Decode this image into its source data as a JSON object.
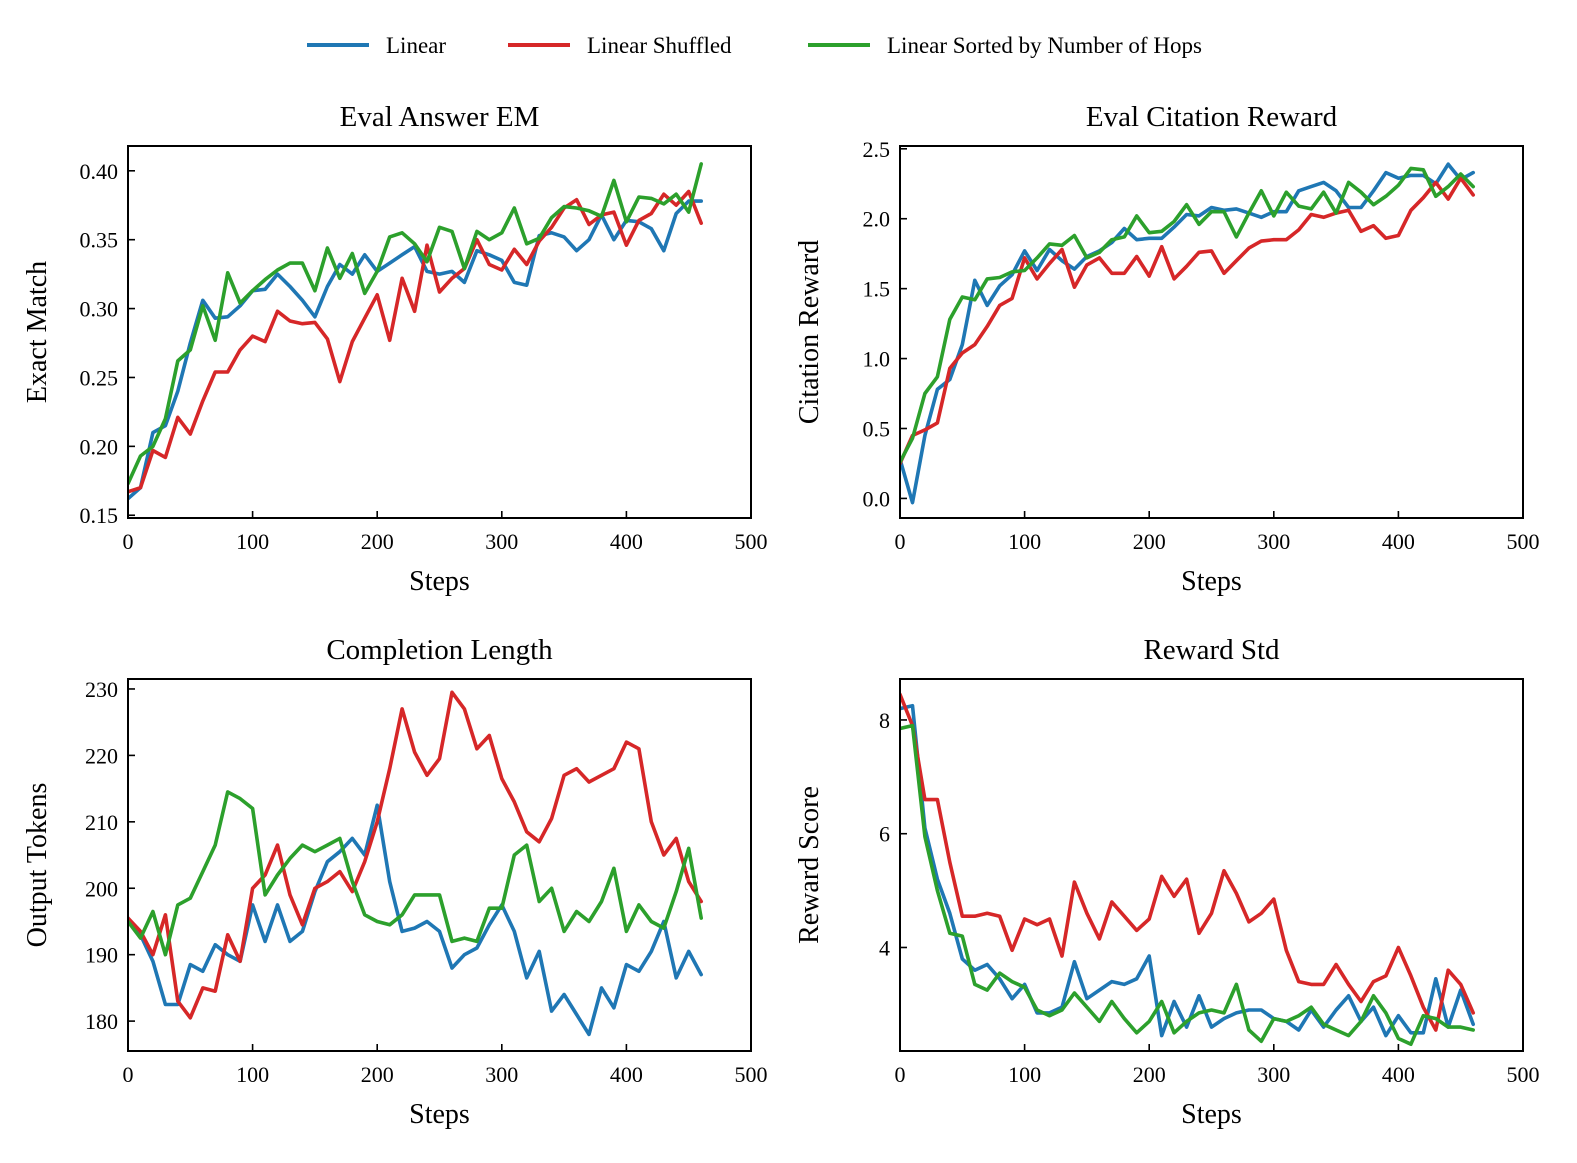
{
  "legend": {
    "items": [
      {
        "label": "Linear",
        "color": "#1f77b4"
      },
      {
        "label": "Linear Shuffled",
        "color": "#d62728"
      },
      {
        "label": "Linear Sorted by Number of Hops",
        "color": "#2ca02c"
      }
    ]
  },
  "chart_data": [
    {
      "type": "line",
      "title": "Eval Answer EM",
      "xlabel": "Steps",
      "ylabel": "Exact Match",
      "xlim": [
        0,
        500
      ],
      "ylim": [
        0.148,
        0.418
      ],
      "xticks": [
        0,
        100,
        200,
        300,
        400,
        500
      ],
      "yticks": [
        0.15,
        0.2,
        0.25,
        0.3,
        0.35,
        0.4
      ],
      "ytick_labels": [
        "0.15",
        "0.20",
        "0.25",
        "0.30",
        "0.35",
        "0.40"
      ],
      "x": [
        0,
        10,
        20,
        30,
        40,
        50,
        60,
        70,
        80,
        90,
        100,
        110,
        120,
        130,
        140,
        150,
        160,
        170,
        180,
        190,
        200,
        210,
        220,
        230,
        240,
        250,
        260,
        270,
        280,
        290,
        300,
        310,
        320,
        330,
        340,
        350,
        360,
        370,
        380,
        390,
        400,
        410,
        420,
        430,
        440,
        450,
        460
      ],
      "series": [
        {
          "name": "Linear",
          "color": "#1f77b4",
          "values": [
            0.162,
            0.17,
            0.21,
            0.215,
            0.24,
            0.275,
            0.306,
            0.293,
            0.294,
            0.302,
            0.313,
            0.314,
            0.325,
            0.316,
            0.306,
            0.294,
            0.316,
            0.332,
            0.325,
            0.339,
            0.327,
            0.333,
            0.339,
            0.345,
            0.327,
            0.325,
            0.327,
            0.319,
            0.342,
            0.339,
            0.335,
            0.319,
            0.317,
            0.353,
            0.355,
            0.352,
            0.342,
            0.35,
            0.368,
            0.35,
            0.364,
            0.363,
            0.358,
            0.342,
            0.369,
            0.378,
            0.378
          ]
        },
        {
          "name": "Linear Shuffled",
          "color": "#d62728",
          "values": [
            0.167,
            0.17,
            0.197,
            0.192,
            0.221,
            0.209,
            0.233,
            0.254,
            0.254,
            0.27,
            0.28,
            0.276,
            0.298,
            0.291,
            0.289,
            0.29,
            0.278,
            0.247,
            0.276,
            0.293,
            0.31,
            0.277,
            0.322,
            0.298,
            0.346,
            0.312,
            0.322,
            0.329,
            0.35,
            0.332,
            0.328,
            0.343,
            0.332,
            0.349,
            0.359,
            0.373,
            0.379,
            0.361,
            0.368,
            0.37,
            0.346,
            0.364,
            0.369,
            0.383,
            0.375,
            0.385,
            0.362
          ]
        },
        {
          "name": "Linear Sorted by Number of Hops",
          "color": "#2ca02c",
          "values": [
            0.173,
            0.193,
            0.2,
            0.22,
            0.262,
            0.27,
            0.302,
            0.277,
            0.326,
            0.304,
            0.313,
            0.321,
            0.328,
            0.333,
            0.333,
            0.313,
            0.344,
            0.322,
            0.34,
            0.311,
            0.327,
            0.352,
            0.355,
            0.347,
            0.334,
            0.359,
            0.356,
            0.329,
            0.356,
            0.35,
            0.355,
            0.373,
            0.347,
            0.351,
            0.366,
            0.374,
            0.373,
            0.371,
            0.367,
            0.393,
            0.363,
            0.381,
            0.38,
            0.376,
            0.383,
            0.37,
            0.405
          ]
        }
      ]
    },
    {
      "type": "line",
      "title": "Eval Citation Reward",
      "xlabel": "Steps",
      "ylabel": "Citation Reward",
      "xlim": [
        0,
        500
      ],
      "ylim": [
        -0.14,
        2.52
      ],
      "xticks": [
        0,
        100,
        200,
        300,
        400,
        500
      ],
      "yticks": [
        0.0,
        0.5,
        1.0,
        1.5,
        2.0,
        2.5
      ],
      "ytick_labels": [
        "0.0",
        "0.5",
        "1.0",
        "1.5",
        "2.0",
        "2.5"
      ],
      "x": [
        0,
        10,
        20,
        30,
        40,
        50,
        60,
        70,
        80,
        90,
        100,
        110,
        120,
        130,
        140,
        150,
        160,
        170,
        180,
        190,
        200,
        210,
        220,
        230,
        240,
        250,
        260,
        270,
        280,
        290,
        300,
        310,
        320,
        330,
        340,
        350,
        360,
        370,
        380,
        390,
        400,
        410,
        420,
        430,
        440,
        450,
        460
      ],
      "series": [
        {
          "name": "Linear",
          "color": "#1f77b4",
          "values": [
            0.28,
            -0.03,
            0.45,
            0.78,
            0.85,
            1.1,
            1.56,
            1.38,
            1.52,
            1.6,
            1.77,
            1.63,
            1.78,
            1.7,
            1.64,
            1.73,
            1.77,
            1.83,
            1.93,
            1.85,
            1.86,
            1.86,
            1.94,
            2.03,
            2.02,
            2.08,
            2.06,
            2.07,
            2.04,
            2.01,
            2.05,
            2.05,
            2.2,
            2.23,
            2.26,
            2.2,
            2.08,
            2.08,
            2.2,
            2.33,
            2.29,
            2.31,
            2.31,
            2.25,
            2.39,
            2.28,
            2.33
          ]
        },
        {
          "name": "Linear Shuffled",
          "color": "#d62728",
          "values": [
            0.25,
            0.45,
            0.49,
            0.54,
            0.93,
            1.04,
            1.1,
            1.23,
            1.38,
            1.43,
            1.72,
            1.57,
            1.68,
            1.78,
            1.51,
            1.67,
            1.72,
            1.61,
            1.61,
            1.73,
            1.59,
            1.8,
            1.57,
            1.66,
            1.76,
            1.77,
            1.61,
            1.7,
            1.79,
            1.84,
            1.85,
            1.85,
            1.92,
            2.03,
            2.01,
            2.04,
            2.06,
            1.91,
            1.95,
            1.86,
            1.88,
            2.06,
            2.15,
            2.26,
            2.14,
            2.29,
            2.17
          ]
        },
        {
          "name": "Linear Sorted by Number of Hops",
          "color": "#2ca02c",
          "values": [
            0.26,
            0.43,
            0.75,
            0.87,
            1.28,
            1.44,
            1.42,
            1.57,
            1.58,
            1.62,
            1.63,
            1.72,
            1.82,
            1.81,
            1.88,
            1.72,
            1.76,
            1.85,
            1.87,
            2.02,
            1.9,
            1.91,
            1.98,
            2.1,
            1.96,
            2.05,
            2.05,
            1.87,
            2.04,
            2.2,
            2.02,
            2.19,
            2.09,
            2.07,
            2.19,
            2.04,
            2.26,
            2.19,
            2.1,
            2.16,
            2.24,
            2.36,
            2.35,
            2.16,
            2.23,
            2.32,
            2.23
          ]
        }
      ]
    },
    {
      "type": "line",
      "title": "Completion Length",
      "xlabel": "Steps",
      "ylabel": "Output Tokens",
      "xlim": [
        0,
        500
      ],
      "ylim": [
        175.5,
        231.5
      ],
      "xticks": [
        0,
        100,
        200,
        300,
        400,
        500
      ],
      "yticks": [
        180,
        190,
        200,
        210,
        220,
        230
      ],
      "ytick_labels": [
        "180",
        "190",
        "200",
        "210",
        "220",
        "230"
      ],
      "x": [
        0,
        10,
        20,
        30,
        40,
        50,
        60,
        70,
        80,
        90,
        100,
        110,
        120,
        130,
        140,
        150,
        160,
        170,
        180,
        190,
        200,
        210,
        220,
        230,
        240,
        250,
        260,
        270,
        280,
        290,
        300,
        310,
        320,
        330,
        340,
        350,
        360,
        370,
        380,
        390,
        400,
        410,
        420,
        430,
        440,
        450,
        460
      ],
      "series": [
        {
          "name": "Linear",
          "color": "#1f77b4",
          "values": [
            195.5,
            193.0,
            189.0,
            182.5,
            182.5,
            188.5,
            187.5,
            191.5,
            190.0,
            189.0,
            197.5,
            192.0,
            197.5,
            192.0,
            193.5,
            199.5,
            204.0,
            205.5,
            207.5,
            205.0,
            212.5,
            201.0,
            193.5,
            194.0,
            195.0,
            193.5,
            188.0,
            190.0,
            191.0,
            194.5,
            197.5,
            193.5,
            186.5,
            190.5,
            181.5,
            184.0,
            181.0,
            178.0,
            185.0,
            182.0,
            188.5,
            187.5,
            190.5,
            195.0,
            186.5,
            190.5,
            187.0
          ]
        },
        {
          "name": "Linear Shuffled",
          "color": "#d62728",
          "values": [
            195.5,
            193.5,
            190.0,
            196.0,
            183.0,
            180.5,
            185.0,
            184.5,
            193.0,
            189.0,
            200.0,
            202.0,
            206.5,
            199.0,
            194.5,
            200.0,
            201.0,
            202.5,
            199.5,
            204.0,
            210.0,
            218.0,
            227.0,
            220.5,
            217.0,
            219.5,
            229.5,
            227.0,
            221.0,
            223.0,
            216.5,
            213.0,
            208.5,
            207.0,
            210.5,
            217.0,
            218.0,
            216.0,
            217.0,
            218.0,
            222.0,
            221.0,
            210.0,
            205.0,
            207.5,
            201.0,
            198.0
          ]
        },
        {
          "name": "Linear Sorted by Number of Hops",
          "color": "#2ca02c",
          "values": [
            195.0,
            192.5,
            196.5,
            190.0,
            197.5,
            198.5,
            202.5,
            206.5,
            214.5,
            213.5,
            212.0,
            199.0,
            202.0,
            204.5,
            206.5,
            205.5,
            206.5,
            207.5,
            201.0,
            196.0,
            195.0,
            194.5,
            196.0,
            199.0,
            199.0,
            199.0,
            192.0,
            192.5,
            192.0,
            197.0,
            197.0,
            205.0,
            206.5,
            198.0,
            200.0,
            193.5,
            196.5,
            195.0,
            198.0,
            203.0,
            193.5,
            197.5,
            195.0,
            194.0,
            199.5,
            206.0,
            195.5
          ]
        }
      ]
    },
    {
      "type": "line",
      "title": "Reward Std",
      "xlabel": "Steps",
      "ylabel": "Reward Score",
      "xlim": [
        0,
        500
      ],
      "ylim": [
        2.18,
        8.72
      ],
      "xticks": [
        0,
        100,
        200,
        300,
        400,
        500
      ],
      "yticks": [
        4,
        6,
        8
      ],
      "ytick_labels": [
        "4",
        "6",
        "8"
      ],
      "x": [
        0,
        10,
        20,
        30,
        40,
        50,
        60,
        70,
        80,
        90,
        100,
        110,
        120,
        130,
        140,
        150,
        160,
        170,
        180,
        190,
        200,
        210,
        220,
        230,
        240,
        250,
        260,
        270,
        280,
        290,
        300,
        310,
        320,
        330,
        340,
        350,
        360,
        370,
        380,
        390,
        400,
        410,
        420,
        430,
        440,
        450,
        460
      ],
      "series": [
        {
          "name": "Linear",
          "color": "#1f77b4",
          "values": [
            8.2,
            8.25,
            6.1,
            5.2,
            4.6,
            3.8,
            3.6,
            3.7,
            3.45,
            3.1,
            3.35,
            2.85,
            2.85,
            2.95,
            3.75,
            3.1,
            3.25,
            3.4,
            3.35,
            3.45,
            3.85,
            2.45,
            3.05,
            2.6,
            3.15,
            2.6,
            2.75,
            2.85,
            2.9,
            2.9,
            2.75,
            2.7,
            2.55,
            2.9,
            2.6,
            2.9,
            3.15,
            2.7,
            2.95,
            2.45,
            2.8,
            2.5,
            2.5,
            3.45,
            2.6,
            3.25,
            2.65
          ]
        },
        {
          "name": "Linear Shuffled",
          "color": "#d62728",
          "values": [
            8.45,
            7.9,
            6.6,
            6.6,
            5.5,
            4.55,
            4.55,
            4.6,
            4.55,
            3.95,
            4.5,
            4.4,
            4.5,
            3.85,
            5.15,
            4.6,
            4.15,
            4.8,
            4.55,
            4.3,
            4.5,
            5.25,
            4.9,
            5.2,
            4.25,
            4.6,
            5.35,
            4.95,
            4.45,
            4.6,
            4.85,
            3.95,
            3.4,
            3.35,
            3.35,
            3.7,
            3.35,
            3.05,
            3.4,
            3.5,
            4.0,
            3.5,
            2.95,
            2.55,
            3.6,
            3.35,
            2.85
          ]
        },
        {
          "name": "Linear Sorted by Number of Hops",
          "color": "#2ca02c",
          "values": [
            7.85,
            7.9,
            5.95,
            5.0,
            4.25,
            4.2,
            3.35,
            3.25,
            3.55,
            3.4,
            3.3,
            2.9,
            2.8,
            2.9,
            3.2,
            2.95,
            2.7,
            3.05,
            2.75,
            2.5,
            2.7,
            3.05,
            2.5,
            2.7,
            2.85,
            2.9,
            2.85,
            3.35,
            2.55,
            2.35,
            2.75,
            2.7,
            2.8,
            2.95,
            2.65,
            2.55,
            2.45,
            2.7,
            3.15,
            2.85,
            2.4,
            2.3,
            2.8,
            2.75,
            2.6,
            2.6,
            2.55
          ]
        }
      ]
    }
  ]
}
